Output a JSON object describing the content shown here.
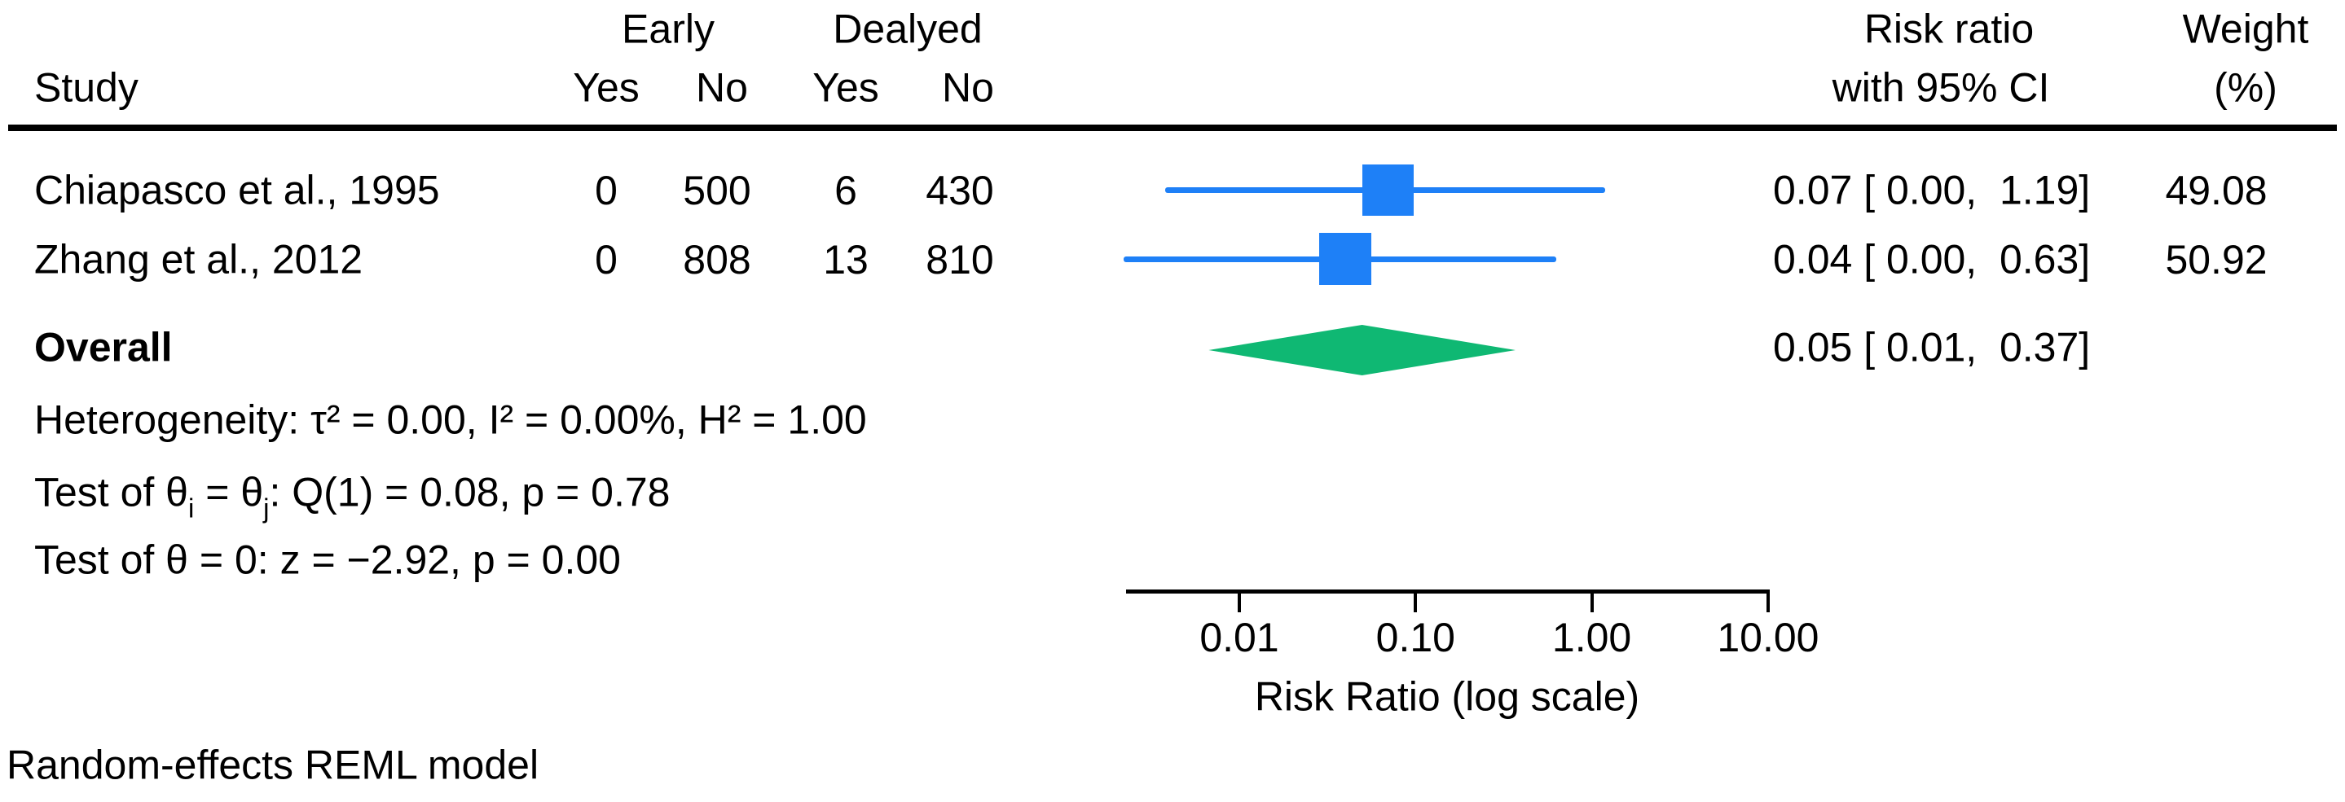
{
  "header": {
    "study": "Study",
    "group_early": "Early",
    "group_delayed": "Dealyed",
    "sub_yes_early": "Yes",
    "sub_no_early": "No",
    "sub_yes_delayed": "Yes",
    "sub_no_delayed": "No",
    "rr_line1": "Risk ratio",
    "rr_line2": "with 95% CI",
    "weight_line1": "Weight",
    "weight_line2": "(%)"
  },
  "rows": [
    {
      "study": "Chiapasco et al., 1995",
      "early_yes": "0",
      "early_no": "500",
      "delayed_yes": "6",
      "delayed_no": "430",
      "ci_text": "0.07 [ 0.00,  1.19]",
      "weight": "49.08"
    },
    {
      "study": "Zhang et al., 2012",
      "early_yes": "0",
      "early_no": "808",
      "delayed_yes": "13",
      "delayed_no": "810",
      "ci_text": "0.04 [ 0.00,  0.63]",
      "weight": "50.92"
    }
  ],
  "overall": {
    "label": "Overall",
    "ci_text": "0.05 [ 0.01,  0.37]"
  },
  "stats": {
    "heterogeneity": "Heterogeneity: τ² = 0.00, I² = 0.00%, H² = 1.00",
    "test_q": {
      "pre": "Test of θ",
      "sub_i": "i",
      "mid": " = θ",
      "sub_j": "j",
      "post": ": Q(1) = 0.08, p = 0.78"
    },
    "test_z": "Test of θ = 0: z = −2.92, p = 0.00"
  },
  "axis": {
    "label": "Risk Ratio (log scale)"
  },
  "footer": "Random-effects REML model",
  "colors": {
    "marker_blue": "#1E80F7",
    "diamond_green": "#0FB873",
    "text_black": "#000000"
  },
  "chart_data": {
    "type": "forest",
    "scale": "log10",
    "xlabel": "Risk Ratio (log scale)",
    "x_ticks": [
      0.01,
      0.1,
      1,
      10
    ],
    "x_tick_labels": [
      "0.01",
      "0.10",
      "1.00",
      "10.00"
    ],
    "studies": [
      {
        "name": "Chiapasco et al., 1995",
        "early_yes": 0,
        "early_no": 500,
        "delayed_yes": 6,
        "delayed_no": 430,
        "estimate": 0.07,
        "ci_low": 0.0,
        "ci_high": 1.19,
        "drawn_low": 0.0038,
        "drawn_high": 1.19,
        "weight": 49.08
      },
      {
        "name": "Zhang et al., 2012",
        "early_yes": 0,
        "early_no": 808,
        "delayed_yes": 13,
        "delayed_no": 810,
        "estimate": 0.04,
        "ci_low": 0.0,
        "ci_high": 0.63,
        "drawn_low": 0.0022,
        "drawn_high": 0.63,
        "weight": 50.92
      }
    ],
    "overall": {
      "estimate": 0.05,
      "ci_low": 0.01,
      "ci_high": 0.37,
      "drawn_low": 0.0067,
      "drawn_high": 0.369
    },
    "stats": {
      "tau2": 0.0,
      "I2_pct": 0.0,
      "H2": 1.0,
      "Q_df": 1,
      "Q": 0.08,
      "p_Q": 0.78,
      "z": -2.92,
      "p_z": 0.0
    },
    "model": "Random-effects REML"
  }
}
